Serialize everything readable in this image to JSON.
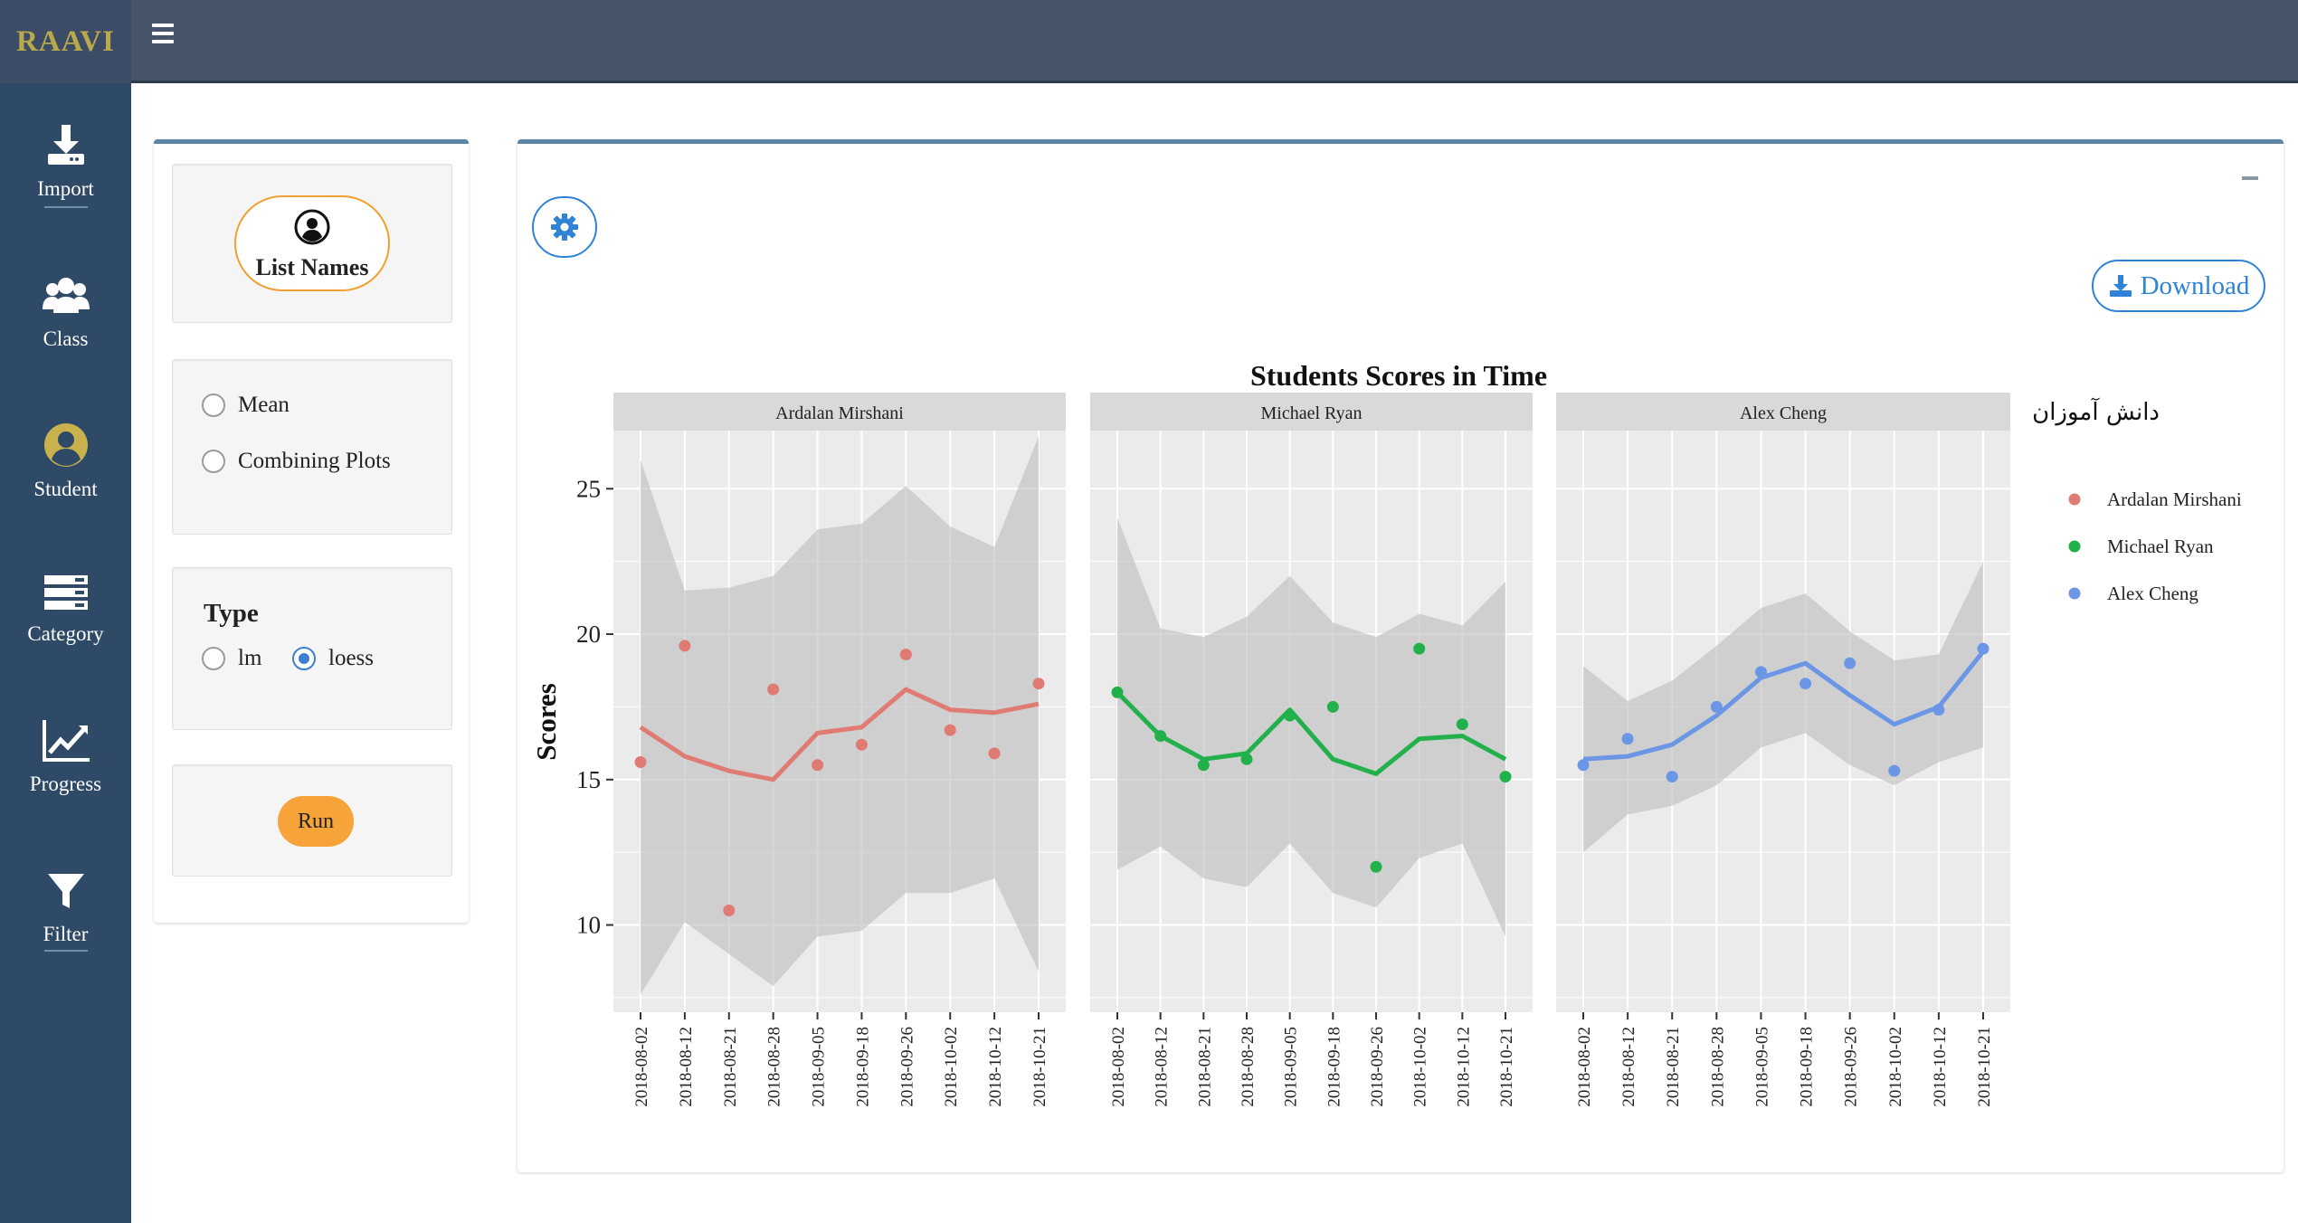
{
  "app": {
    "logo": "RAAVI"
  },
  "sidebar": {
    "items": [
      {
        "label": "Import",
        "icon": "download-icon"
      },
      {
        "label": "Class",
        "icon": "users-icon"
      },
      {
        "label": "Student",
        "icon": "user-circle-icon"
      },
      {
        "label": "Category",
        "icon": "server-icon"
      },
      {
        "label": "Progress",
        "icon": "line-chart-icon"
      },
      {
        "label": "Filter",
        "icon": "filter-icon"
      }
    ]
  },
  "controls": {
    "list_names_label": "List Names",
    "options": [
      {
        "label": "Mean",
        "checked": false
      },
      {
        "label": "Combining Plots",
        "checked": false
      }
    ],
    "type_title": "Type",
    "type_options": [
      {
        "label": "lm",
        "checked": false
      },
      {
        "label": "loess",
        "checked": true
      }
    ],
    "run_label": "Run"
  },
  "main": {
    "download_label": "Download"
  },
  "colors": {
    "series1": "#e07b73",
    "series2": "#22b04b",
    "series3": "#6b96e6",
    "accent": "#2f83d6",
    "sidebar": "#2f4a67"
  },
  "chart_data": {
    "type": "line",
    "title": "Students Scores in Time",
    "ylabel": "Scores",
    "legend_title": "دانش آموزان",
    "legend_placement": "right",
    "ylim": [
      7,
      27
    ],
    "yticks": [
      10,
      15,
      20,
      25
    ],
    "x": [
      "2018-08-02",
      "2018-08-12",
      "2018-08-21",
      "2018-08-28",
      "2018-09-05",
      "2018-09-18",
      "2018-09-26",
      "2018-10-02",
      "2018-10-12",
      "2018-10-21"
    ],
    "series": [
      {
        "name": "Ardalan Mirshani",
        "points": [
          15.6,
          19.6,
          10.5,
          18.1,
          15.5,
          16.2,
          19.3,
          16.7,
          15.9,
          18.3
        ],
        "smooth": [
          16.8,
          15.8,
          15.3,
          15.0,
          16.6,
          16.8,
          18.1,
          17.4,
          17.3,
          17.6
        ],
        "band_upper": [
          26.0,
          21.5,
          21.6,
          22.0,
          23.6,
          23.8,
          25.1,
          23.7,
          23.0,
          26.8
        ],
        "band_lower": [
          7.6,
          10.1,
          9.0,
          7.9,
          9.6,
          9.8,
          11.1,
          11.1,
          11.6,
          8.4
        ]
      },
      {
        "name": "Michael Ryan",
        "points": [
          18.0,
          16.5,
          15.5,
          15.7,
          17.2,
          17.5,
          12.0,
          19.5,
          16.9,
          15.1
        ],
        "smooth": [
          18.0,
          16.5,
          15.7,
          15.9,
          17.4,
          15.7,
          15.2,
          16.4,
          16.5,
          15.7
        ],
        "band_upper": [
          24.0,
          20.2,
          19.9,
          20.6,
          22.0,
          20.4,
          19.9,
          20.7,
          20.3,
          21.8
        ],
        "band_lower": [
          11.9,
          12.7,
          11.6,
          11.3,
          12.8,
          11.1,
          10.6,
          12.3,
          12.8,
          9.6
        ]
      },
      {
        "name": "Alex Cheng",
        "points": [
          15.5,
          16.4,
          15.1,
          17.5,
          18.7,
          18.3,
          19.0,
          15.3,
          17.4,
          19.5
        ],
        "smooth": [
          15.7,
          15.8,
          16.2,
          17.2,
          18.5,
          19.0,
          17.9,
          16.9,
          17.5,
          19.4
        ],
        "band_upper": [
          18.9,
          17.7,
          18.4,
          19.6,
          20.9,
          21.4,
          20.1,
          19.1,
          19.3,
          22.5
        ],
        "band_lower": [
          12.5,
          13.8,
          14.1,
          14.8,
          16.1,
          16.6,
          15.5,
          14.8,
          15.6,
          16.1
        ]
      }
    ]
  }
}
